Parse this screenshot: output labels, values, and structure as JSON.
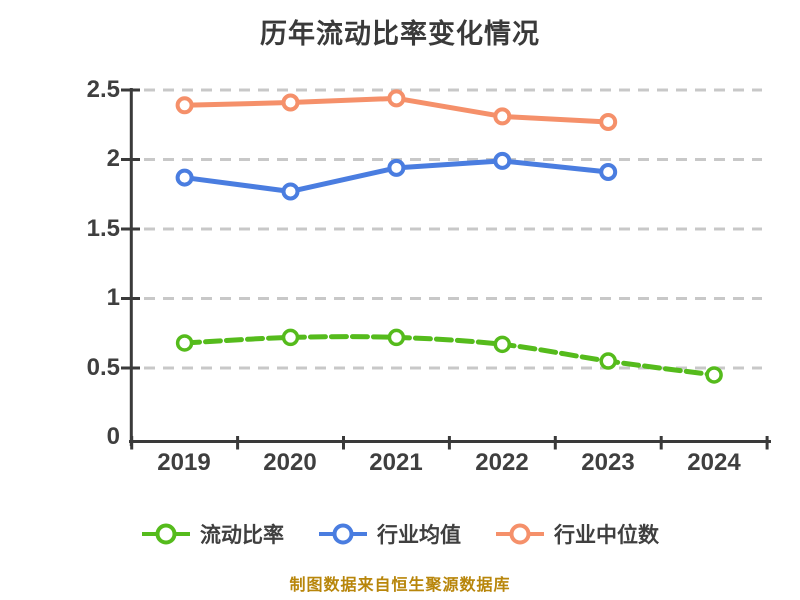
{
  "title": "历年流动比率变化情况",
  "caption": "制图数据来自恒生聚源数据库",
  "chart_data": {
    "type": "line",
    "title": "历年流动比率变化情况",
    "categories": [
      "2019",
      "2020",
      "2021",
      "2022",
      "2023",
      "2024"
    ],
    "series": [
      {
        "name": "流动比率",
        "color": "#55bb1c",
        "line_style": "dashed-sketch",
        "marker": "open-circle",
        "values": [
          0.68,
          0.72,
          0.72,
          0.67,
          0.55,
          0.45
        ]
      },
      {
        "name": "行业均值",
        "color": "#4a7de0",
        "line_style": "solid",
        "marker": "open-circle",
        "values": [
          1.87,
          1.77,
          1.94,
          1.99,
          1.91,
          null
        ]
      },
      {
        "name": "行业中位数",
        "color": "#f5906a",
        "line_style": "solid",
        "marker": "open-circle",
        "values": [
          2.39,
          2.41,
          2.44,
          2.31,
          2.27,
          null
        ]
      }
    ],
    "ylim": [
      0,
      2.5
    ],
    "yticks": [
      0,
      0.5,
      1,
      1.5,
      2,
      2.5
    ],
    "ytick_labels": [
      "0",
      "0.5",
      "1",
      "1.5",
      "2",
      "2.5"
    ],
    "xlabel": "",
    "ylabel": "",
    "grid": "horizontal-dashed",
    "legend_position": "bottom",
    "footer_note": "制图数据来自恒生聚源数据库",
    "colors": {
      "axis": "#3a3a3a",
      "grid": "#c8c8c8",
      "tick_text": "#3f3f3f",
      "title_text": "#3a3a3a",
      "legend_text": "#3f3f3f",
      "caption_text": "#b8860b",
      "background": "#ffffff"
    }
  }
}
